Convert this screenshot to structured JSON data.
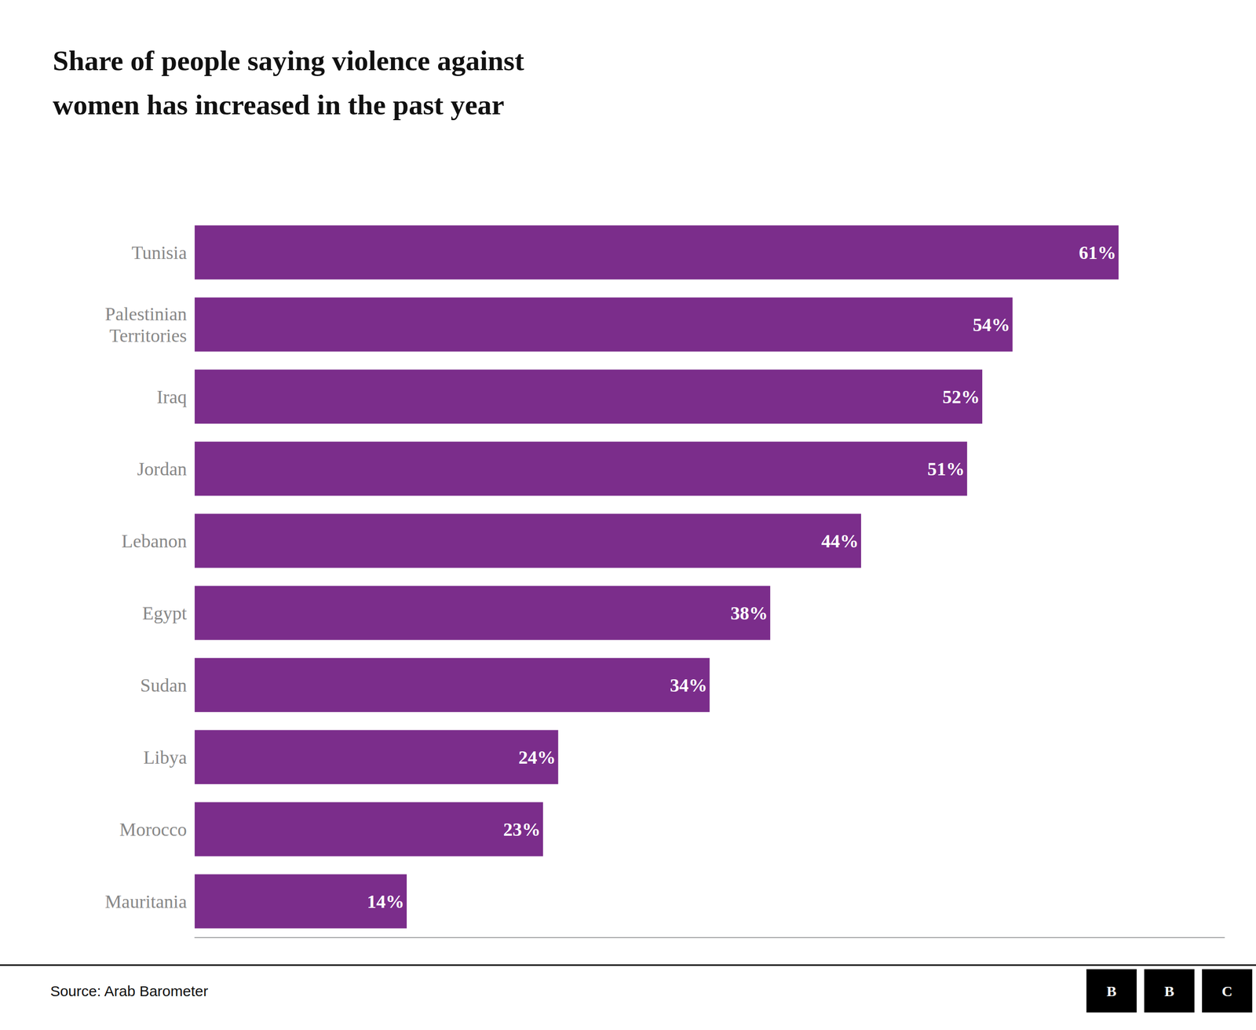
{
  "chart_data": {
    "type": "bar",
    "orientation": "horizontal",
    "title": "Share of people saying violence against\nwomen has increased in the past year",
    "categories": [
      "Tunisia",
      "Palestinian\nTerritories",
      "Iraq",
      "Jordan",
      "Lebanon",
      "Egypt",
      "Sudan",
      "Libya",
      "Morocco",
      "Mauritania"
    ],
    "values": [
      61,
      54,
      52,
      51,
      44,
      38,
      34,
      24,
      23,
      14
    ],
    "value_labels": [
      "61%",
      "54%",
      "52%",
      "51%",
      "44%",
      "38%",
      "34%",
      "24%",
      "23%",
      "14%"
    ],
    "data_labels": true,
    "color": "#7B2D8B",
    "xlim": [
      0,
      68
    ],
    "tick_labels": "y",
    "grid": false,
    "annotations": [
      "Source: Arab Barometer"
    ],
    "logo": [
      "B",
      "B",
      "C"
    ]
  }
}
